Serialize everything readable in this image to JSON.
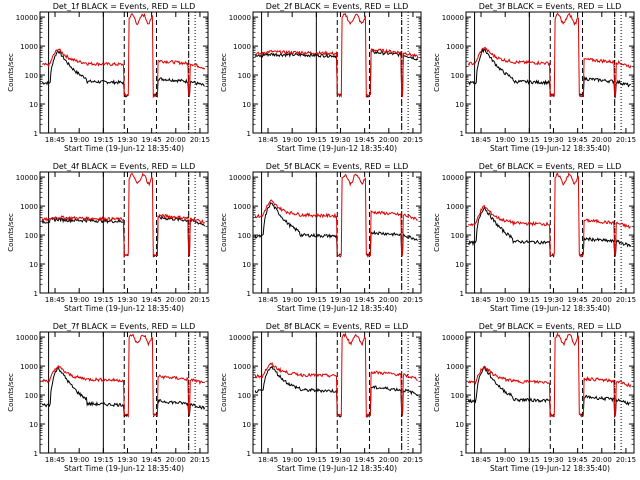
{
  "figure": {
    "title_template": "Det_{n}f BLACK = Events, RED = LLD",
    "xlabel": "Start Time (19-Jun-12 18:35:40)",
    "ylabel": "Counts/sec"
  },
  "chart_data": [
    {
      "type": "line",
      "title": "Det_1f BLACK = Events, RED = LLD",
      "xlabel": "Start Time (19-Jun-12 18:35:40)",
      "ylabel": "Counts/sec",
      "y_scale": "log",
      "ylim": [
        1,
        15000
      ],
      "xlim": [
        "18:35:40",
        "20:20:00"
      ],
      "x_ticks": [
        "18:45",
        "19:00",
        "19:15",
        "19:30",
        "19:45",
        "20:00",
        "20:15"
      ],
      "y_ticks": [
        "1",
        "10",
        "100",
        "1000",
        "10000"
      ],
      "markers": {
        "solid": [
          "18:41",
          "19:15"
        ],
        "dashed": [
          "19:28",
          "19:48",
          "20:08"
        ],
        "dotted": [
          "20:08",
          "20:12"
        ]
      },
      "series": [
        {
          "name": "Events",
          "color": "#000000",
          "profile": {
            "flat": 60,
            "peak": 700,
            "saa": 20
          }
        },
        {
          "name": "LLD",
          "color": "#dd0000",
          "profile": {
            "flat": 250,
            "peak": 800,
            "saa": 20
          }
        }
      ]
    },
    {
      "type": "line",
      "title": "Det_2f BLACK = Events, RED = LLD",
      "xlabel": "Start Time (19-Jun-12 18:35:40)",
      "ylabel": "Counts/sec",
      "y_scale": "log",
      "ylim": [
        1,
        15000
      ],
      "xlim": [
        "18:35:40",
        "20:20:00"
      ],
      "x_ticks": [
        "18:45",
        "19:00",
        "19:15",
        "19:30",
        "19:45",
        "20:00",
        "20:15"
      ],
      "y_ticks": [
        "1",
        "10",
        "100",
        "1000",
        "10000"
      ],
      "markers": {
        "solid": [
          "18:41",
          "19:15"
        ],
        "dashed": [
          "19:28",
          "19:48",
          "20:08"
        ],
        "dotted": [
          "20:08",
          "20:12"
        ]
      },
      "series": [
        {
          "name": "Events",
          "color": "#000000",
          "profile": {
            "flat": 500,
            "peak": 520,
            "saa": 20
          }
        },
        {
          "name": "LLD",
          "color": "#dd0000",
          "profile": {
            "flat": 600,
            "peak": 650,
            "saa": 20
          }
        }
      ]
    },
    {
      "type": "line",
      "title": "Det_3f BLACK = Events, RED = LLD",
      "xlabel": "Start Time (19-Jun-12 18:35:40)",
      "ylabel": "Counts/sec",
      "y_scale": "log",
      "ylim": [
        1,
        15000
      ],
      "xlim": [
        "18:35:40",
        "20:20:00"
      ],
      "x_ticks": [
        "18:45",
        "19:00",
        "19:15",
        "19:30",
        "19:45",
        "20:00",
        "20:15"
      ],
      "y_ticks": [
        "1",
        "10",
        "100",
        "1000",
        "10000"
      ],
      "markers": {
        "solid": [
          "18:41",
          "19:15"
        ],
        "dashed": [
          "19:28",
          "19:48",
          "20:08"
        ],
        "dotted": [
          "20:08",
          "20:12"
        ]
      },
      "series": [
        {
          "name": "Events",
          "color": "#000000",
          "profile": {
            "flat": 60,
            "peak": 800,
            "saa": 20
          }
        },
        {
          "name": "LLD",
          "color": "#dd0000",
          "profile": {
            "flat": 280,
            "peak": 900,
            "saa": 20
          }
        }
      ]
    },
    {
      "type": "line",
      "title": "Det_4f BLACK = Events, RED = LLD",
      "xlabel": "Start Time (19-Jun-12 18:35:40)",
      "ylabel": "Counts/sec",
      "y_scale": "log",
      "ylim": [
        1,
        15000
      ],
      "xlim": [
        "18:35:40",
        "20:20:00"
      ],
      "x_ticks": [
        "18:45",
        "19:00",
        "19:15",
        "19:30",
        "19:45",
        "20:00",
        "20:15"
      ],
      "y_ticks": [
        "1",
        "10",
        "100",
        "1000",
        "10000"
      ],
      "markers": {
        "solid": [
          "18:41",
          "19:15"
        ],
        "dashed": [
          "19:28",
          "19:48",
          "20:08"
        ],
        "dotted": [
          "20:08",
          "20:12"
        ]
      },
      "series": [
        {
          "name": "Events",
          "color": "#000000",
          "profile": {
            "flat": 320,
            "peak": 350,
            "saa": 20
          }
        },
        {
          "name": "LLD",
          "color": "#dd0000",
          "profile": {
            "flat": 380,
            "peak": 420,
            "saa": 20
          }
        }
      ]
    },
    {
      "type": "line",
      "title": "Det_5f BLACK = Events, RED = LLD",
      "xlabel": "Start Time (19-Jun-12 18:35:40)",
      "ylabel": "Counts/sec",
      "y_scale": "log",
      "ylim": [
        1,
        15000
      ],
      "xlim": [
        "18:35:40",
        "20:20:00"
      ],
      "x_ticks": [
        "18:45",
        "19:00",
        "19:15",
        "19:30",
        "19:45",
        "20:00",
        "20:15"
      ],
      "y_ticks": [
        "1",
        "10",
        "100",
        "1000",
        "10000"
      ],
      "markers": {
        "solid": [
          "18:41",
          "19:15"
        ],
        "dashed": [
          "19:28",
          "19:48",
          "20:08"
        ],
        "dotted": [
          "20:08",
          "20:12"
        ]
      },
      "series": [
        {
          "name": "Events",
          "color": "#000000",
          "profile": {
            "flat": 100,
            "peak": 1300,
            "saa": 20
          }
        },
        {
          "name": "LLD",
          "color": "#dd0000",
          "profile": {
            "flat": 500,
            "peak": 1500,
            "saa": 20
          }
        }
      ]
    },
    {
      "type": "line",
      "title": "Det_6f BLACK = Events, RED = LLD",
      "xlabel": "Start Time (19-Jun-12 18:35:40)",
      "ylabel": "Counts/sec",
      "y_scale": "log",
      "ylim": [
        1,
        15000
      ],
      "xlim": [
        "18:35:40",
        "20:20:00"
      ],
      "x_ticks": [
        "18:45",
        "19:00",
        "19:15",
        "19:30",
        "19:45",
        "20:00",
        "20:15"
      ],
      "y_ticks": [
        "1",
        "10",
        "100",
        "1000",
        "10000"
      ],
      "markers": {
        "solid": [
          "18:41",
          "19:15"
        ],
        "dashed": [
          "19:28",
          "19:48",
          "20:08"
        ],
        "dotted": [
          "20:08",
          "20:12"
        ]
      },
      "series": [
        {
          "name": "Events",
          "color": "#000000",
          "profile": {
            "flat": 60,
            "peak": 900,
            "saa": 20
          }
        },
        {
          "name": "LLD",
          "color": "#dd0000",
          "profile": {
            "flat": 260,
            "peak": 1000,
            "saa": 20
          }
        }
      ]
    },
    {
      "type": "line",
      "title": "Det_7f BLACK = Events, RED = LLD",
      "xlabel": "Start Time (19-Jun-12 18:35:40)",
      "ylabel": "Counts/sec",
      "y_scale": "log",
      "ylim": [
        1,
        15000
      ],
      "xlim": [
        "18:35:40",
        "20:20:00"
      ],
      "x_ticks": [
        "18:45",
        "19:00",
        "19:15",
        "19:30",
        "19:45",
        "20:00",
        "20:15"
      ],
      "y_ticks": [
        "1",
        "10",
        "100",
        "1000",
        "10000"
      ],
      "markers": {
        "solid": [
          "18:41",
          "19:15"
        ],
        "dashed": [
          "19:28",
          "19:48",
          "20:08"
        ],
        "dotted": [
          "20:08",
          "20:12"
        ]
      },
      "series": [
        {
          "name": "Events",
          "color": "#000000",
          "profile": {
            "flat": 50,
            "peak": 900,
            "saa": 20
          }
        },
        {
          "name": "LLD",
          "color": "#dd0000",
          "profile": {
            "flat": 350,
            "peak": 1000,
            "saa": 20
          }
        }
      ]
    },
    {
      "type": "line",
      "title": "Det_8f BLACK = Events, RED = LLD",
      "xlabel": "Start Time (19-Jun-12 18:35:40)",
      "ylabel": "Counts/sec",
      "y_scale": "log",
      "ylim": [
        1,
        15000
      ],
      "xlim": [
        "18:35:40",
        "20:20:00"
      ],
      "x_ticks": [
        "18:45",
        "19:00",
        "19:15",
        "19:30",
        "19:45",
        "20:00",
        "20:15"
      ],
      "y_ticks": [
        "1",
        "10",
        "100",
        "1000",
        "10000"
      ],
      "markers": {
        "solid": [
          "18:41",
          "19:15"
        ],
        "dashed": [
          "19:28",
          "19:48",
          "20:08"
        ],
        "dotted": [
          "20:08",
          "20:12"
        ]
      },
      "series": [
        {
          "name": "Events",
          "color": "#000000",
          "profile": {
            "flat": 150,
            "peak": 1000,
            "saa": 20
          }
        },
        {
          "name": "LLD",
          "color": "#dd0000",
          "profile": {
            "flat": 500,
            "peak": 1200,
            "saa": 20
          }
        }
      ]
    },
    {
      "type": "line",
      "title": "Det_9f BLACK = Events, RED = LLD",
      "xlabel": "Start Time (19-Jun-12 18:35:40)",
      "ylabel": "Counts/sec",
      "y_scale": "log",
      "ylim": [
        1,
        15000
      ],
      "xlim": [
        "18:35:40",
        "20:20:00"
      ],
      "x_ticks": [
        "18:45",
        "19:00",
        "19:15",
        "19:30",
        "19:45",
        "20:00",
        "20:15"
      ],
      "y_ticks": [
        "1",
        "10",
        "100",
        "1000",
        "10000"
      ],
      "markers": {
        "solid": [
          "18:41",
          "19:15"
        ],
        "dashed": [
          "19:28",
          "19:48",
          "20:08"
        ],
        "dotted": [
          "20:08",
          "20:12"
        ]
      },
      "series": [
        {
          "name": "Events",
          "color": "#000000",
          "profile": {
            "flat": 70,
            "peak": 900,
            "saa": 20
          }
        },
        {
          "name": "LLD",
          "color": "#dd0000",
          "profile": {
            "flat": 300,
            "peak": 1000,
            "saa": 20
          }
        }
      ]
    }
  ]
}
